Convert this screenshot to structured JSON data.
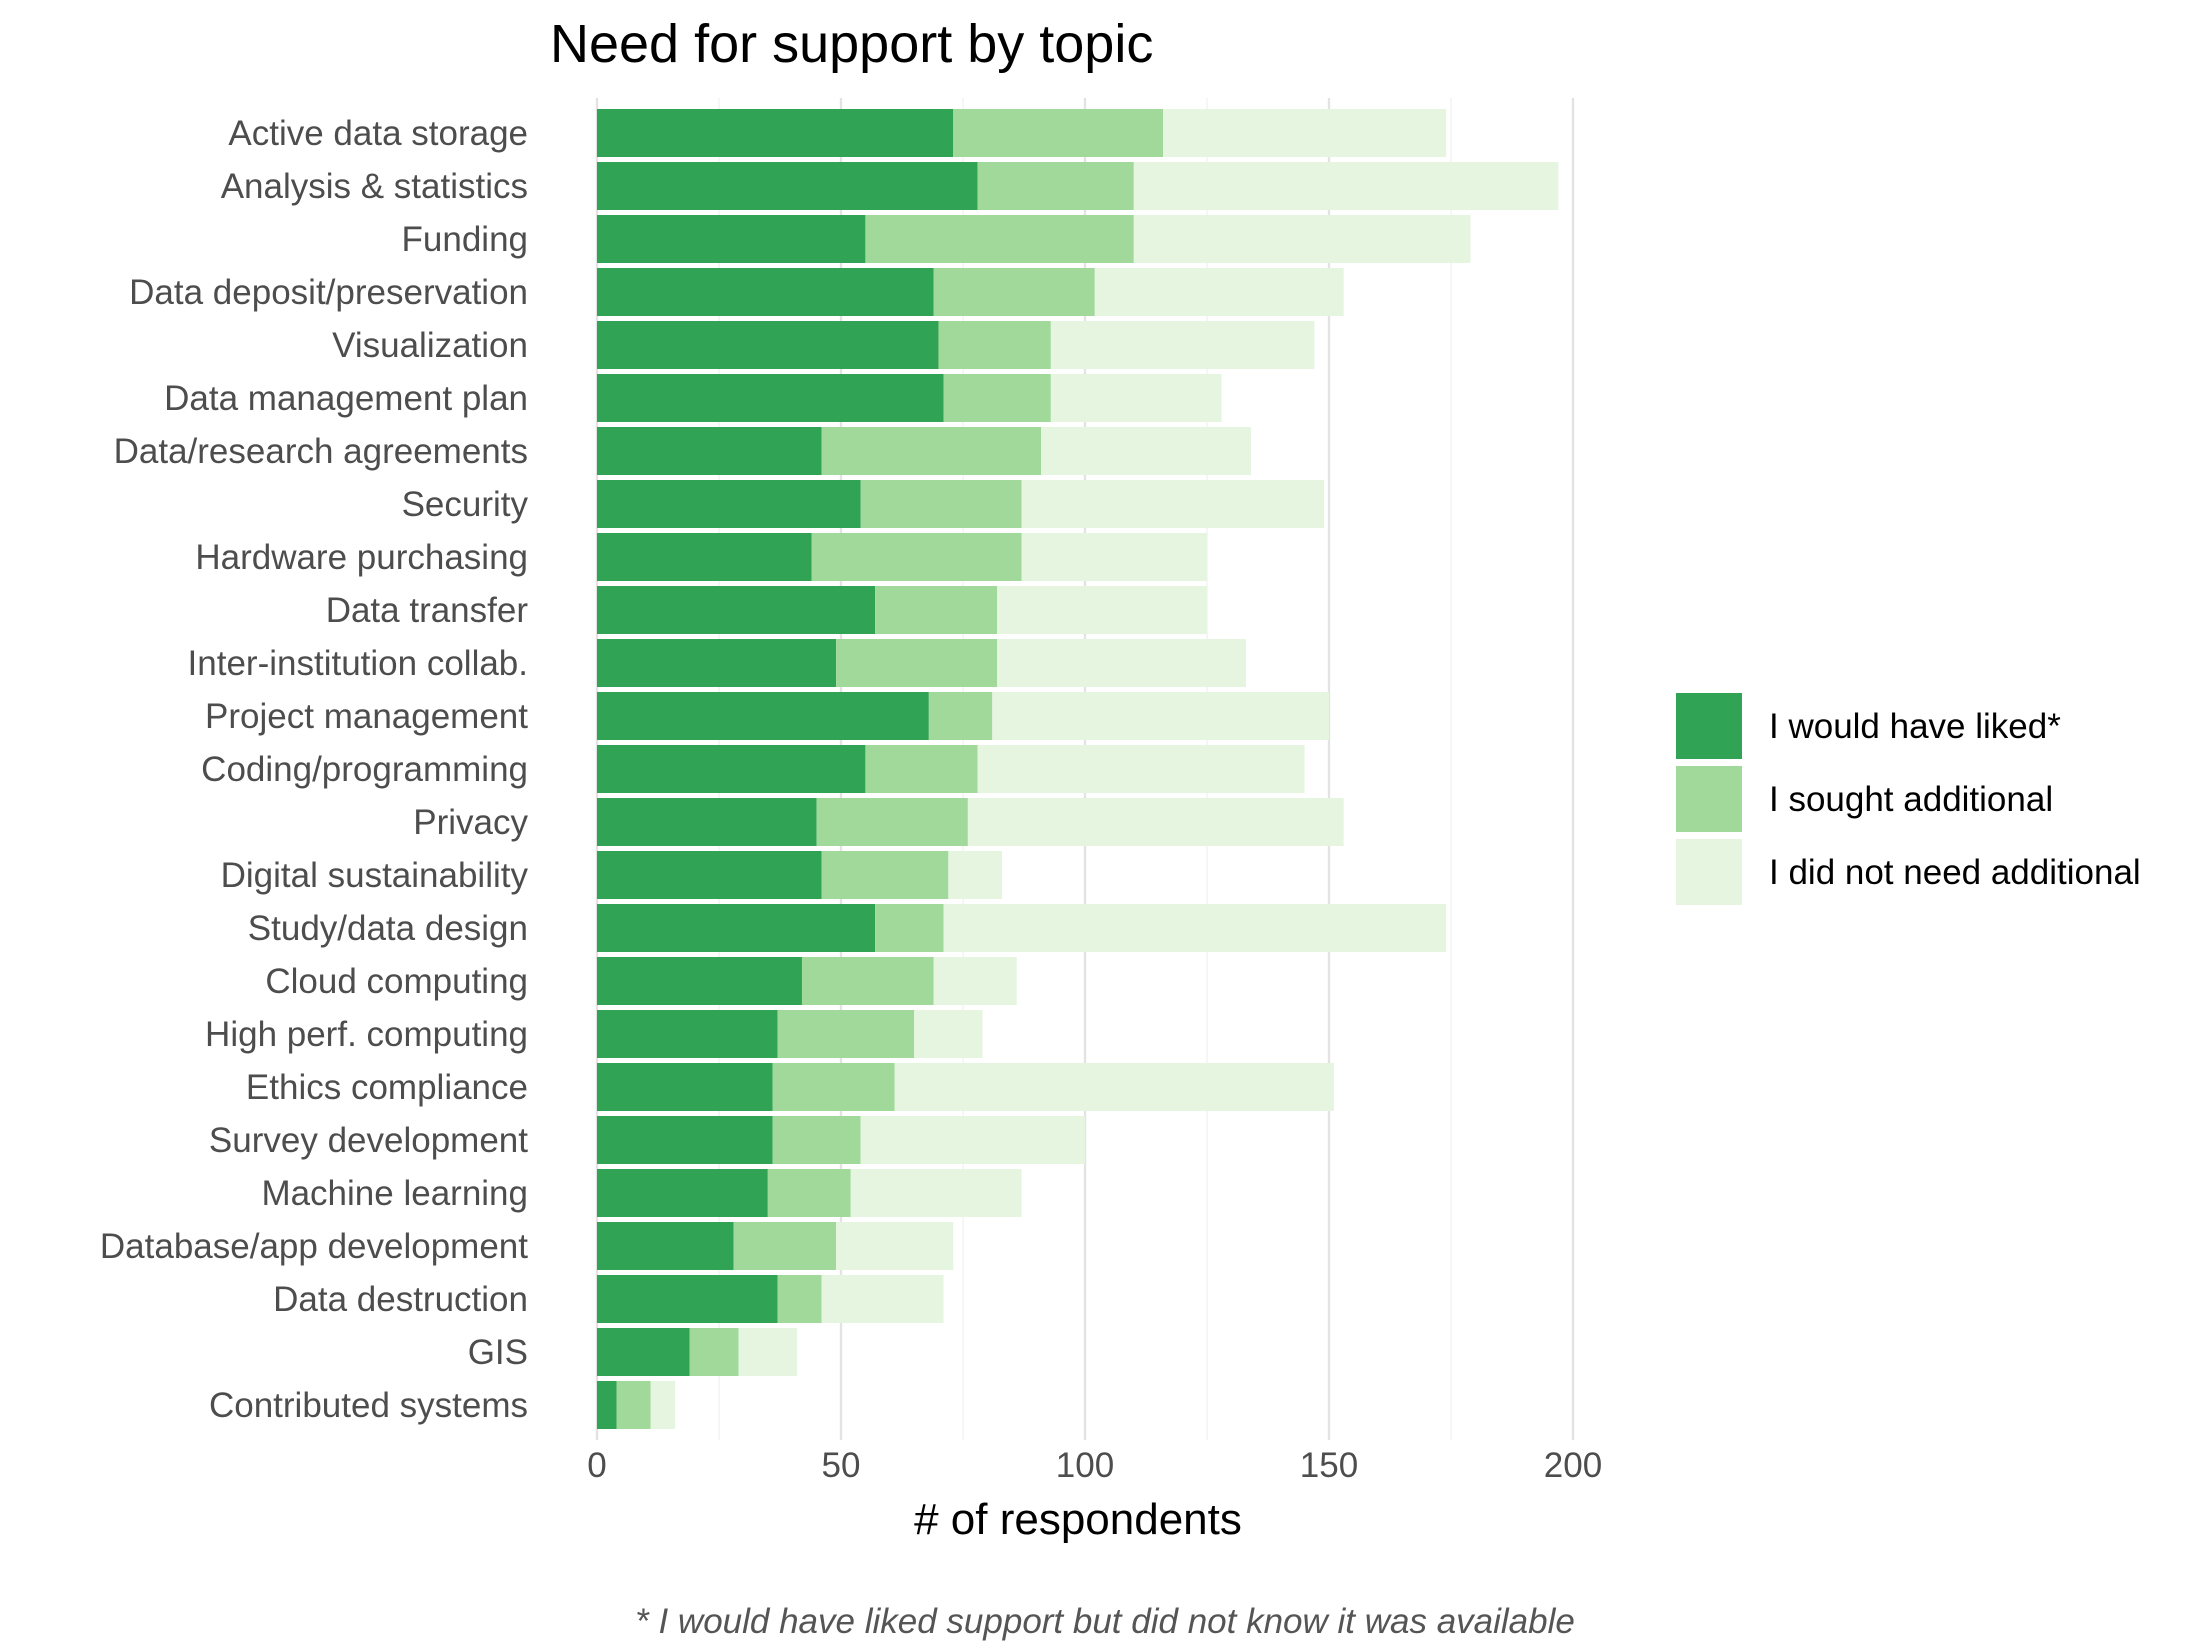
{
  "chart_data": {
    "type": "bar",
    "orientation": "horizontal",
    "stacked": true,
    "title": "Need for support by topic",
    "xlabel": "# of respondents",
    "ylabel": "",
    "xlim": [
      0,
      200
    ],
    "x_ticks": [
      0,
      50,
      100,
      150,
      200
    ],
    "grid": true,
    "legend_position": "right",
    "caption": "* I would have liked support but did not know it was available",
    "categories": [
      "Active data storage",
      "Analysis & statistics",
      "Funding",
      "Data deposit/preservation",
      "Visualization",
      "Data management plan",
      "Data/research agreements",
      "Security",
      "Hardware purchasing",
      "Data transfer",
      "Inter-institution collab.",
      "Project management",
      "Coding/programming",
      "Privacy",
      "Digital sustainability",
      "Study/data design",
      "Cloud computing",
      "High perf. computing",
      "Ethics compliance",
      "Survey development",
      "Machine learning",
      "Database/app development",
      "Data destruction",
      "GIS",
      "Contributed systems"
    ],
    "series": [
      {
        "name": "I would have liked*",
        "color": "#31a354",
        "values": [
          73,
          78,
          55,
          69,
          70,
          71,
          46,
          54,
          44,
          57,
          49,
          68,
          55,
          45,
          46,
          57,
          42,
          37,
          36,
          36,
          35,
          28,
          37,
          19,
          4
        ]
      },
      {
        "name": "I sought additional",
        "color": "#a1d99b",
        "values": [
          43,
          32,
          55,
          33,
          23,
          22,
          45,
          33,
          43,
          25,
          33,
          13,
          23,
          31,
          26,
          14,
          27,
          28,
          25,
          18,
          17,
          21,
          9,
          10,
          7
        ]
      },
      {
        "name": "I did not need additional",
        "color": "#e5f5e0",
        "values": [
          58,
          87,
          69,
          51,
          54,
          35,
          43,
          62,
          38,
          43,
          51,
          69,
          67,
          77,
          11,
          103,
          17,
          14,
          90,
          46,
          35,
          24,
          25,
          12,
          5
        ]
      }
    ]
  }
}
